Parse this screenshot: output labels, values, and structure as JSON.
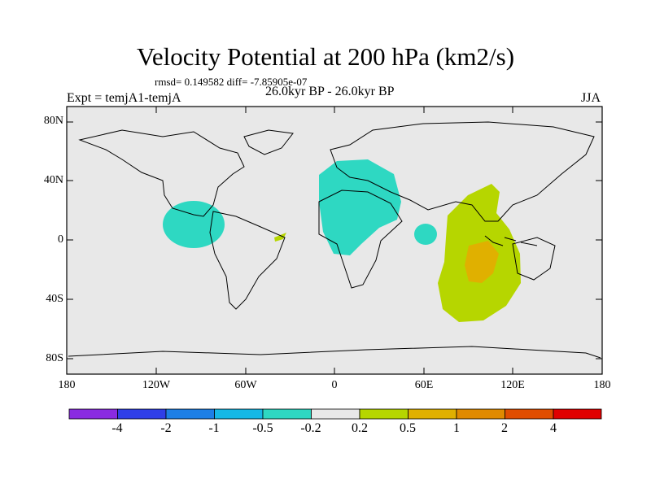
{
  "header": {
    "title": "Velocity Potential at 200 hPa (km2/s)",
    "stats": "rmsd= 0.149582  diff= -7.85905e-07",
    "period": "26.0kyr BP - 26.0kyr BP",
    "experiment": "Expt = temjA1-temjA",
    "season": "JJA"
  },
  "map": {
    "projection": "cylindrical-equidistant",
    "lat_range": [
      -90,
      90
    ],
    "lon_range": [
      -180,
      180
    ],
    "ocean_color": "#e8e8e8",
    "lat_labels": [
      "80N",
      "40N",
      "0",
      "40S",
      "80S"
    ],
    "lon_labels": [
      "180",
      "120W",
      "60W",
      "0",
      "60E",
      "120E",
      "180"
    ],
    "anomalies": [
      {
        "region": "Central America / Eastern Pacific",
        "category": "-0.5 to -0.2",
        "color": "#2ed8c2"
      },
      {
        "region": "North Africa / Mediterranean",
        "category": "-0.5 to -0.2",
        "color": "#2ed8c2"
      },
      {
        "region": "Western Indian Ocean",
        "category": "-0.5 to -0.2",
        "color": "#2ed8c2"
      },
      {
        "region": "Equatorial Atlantic",
        "category": "0.2 to 0.5",
        "color": "#b6d600"
      },
      {
        "region": "Indian Ocean / Maritime Continent",
        "category": "0.2 to 0.5",
        "color": "#b6d600"
      },
      {
        "region": "Eastern Indian Ocean core",
        "category": "0.5 to 1",
        "color": "#e0b000"
      }
    ]
  },
  "colorbar": {
    "colors": [
      "#8a2be2",
      "#2f3fe8",
      "#1d7fe6",
      "#16b8e6",
      "#2ed8c2",
      "#e8e8e8",
      "#b6d600",
      "#e0b000",
      "#e08a00",
      "#e04d00",
      "#e00000"
    ],
    "labels": [
      "-4",
      "-2",
      "-1",
      "-0.5",
      "-0.2",
      "0.2",
      "0.5",
      "1",
      "2",
      "4"
    ]
  }
}
